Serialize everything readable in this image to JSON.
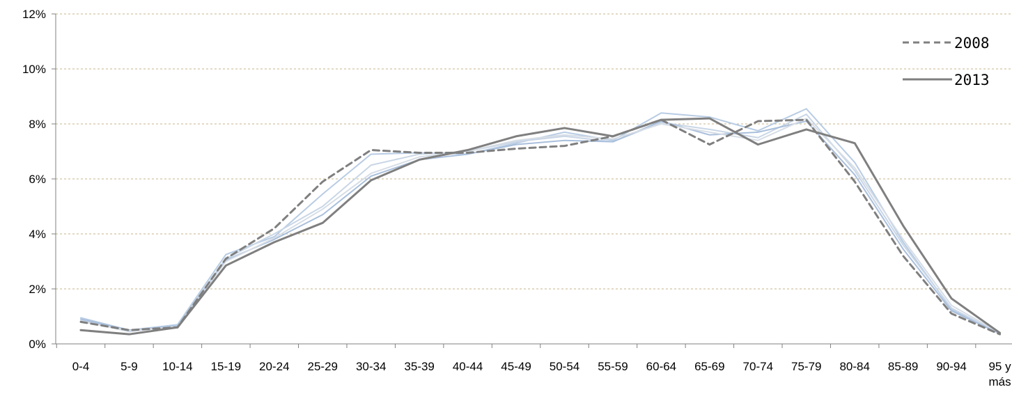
{
  "chart_data": {
    "type": "line",
    "title": "",
    "xlabel": "",
    "ylabel": "",
    "categories": [
      "0-4",
      "5-9",
      "10-14",
      "15-19",
      "20-24",
      "25-29",
      "30-34",
      "35-39",
      "40-44",
      "45-49",
      "50-54",
      "55-59",
      "60-64",
      "65-69",
      "70-74",
      "75-79",
      "80-84",
      "85-89",
      "90-94",
      "95 y más"
    ],
    "y_tick_labels": [
      "0%",
      "2%",
      "4%",
      "6%",
      "8%",
      "10%",
      "12%"
    ],
    "ylim": [
      0,
      12
    ],
    "grid": "horizontal dashed",
    "legend": {
      "position": "top-right",
      "entries": [
        {
          "label": "2008",
          "style": "dashed",
          "color": "#7f7f7f"
        },
        {
          "label": "2013",
          "style": "solid",
          "color": "#7f7f7f"
        }
      ]
    },
    "series": [
      {
        "name": "2008",
        "style": "dashed",
        "color": "#7f7f7f",
        "width": 3,
        "values": [
          0.8,
          0.5,
          0.6,
          3.1,
          4.2,
          5.9,
          7.05,
          6.95,
          6.95,
          7.1,
          7.2,
          7.55,
          8.15,
          7.25,
          8.1,
          8.15,
          5.9,
          3.2,
          1.1,
          0.35
        ]
      },
      {
        "style": "solid",
        "color": "#b8cce4",
        "width": 2,
        "values": [
          0.95,
          0.5,
          0.7,
          3.25,
          3.9,
          5.45,
          6.9,
          6.95,
          6.9,
          7.3,
          7.7,
          7.4,
          8.4,
          8.25,
          7.75,
          8.55,
          6.6,
          3.7,
          1.25,
          0.38
        ]
      },
      {
        "style": "solid",
        "color": "#c9d6e6",
        "width": 2,
        "values": [
          0.85,
          0.45,
          0.65,
          3.1,
          4.0,
          5.0,
          6.5,
          6.9,
          7.0,
          7.35,
          7.55,
          7.35,
          8.05,
          7.8,
          7.5,
          8.35,
          6.3,
          3.6,
          1.3,
          0.38
        ]
      },
      {
        "style": "solid",
        "color": "#a9bfdc",
        "width": 2,
        "values": [
          0.9,
          0.5,
          0.65,
          3.05,
          3.8,
          4.7,
          6.1,
          6.7,
          6.9,
          7.25,
          7.4,
          7.35,
          8.1,
          7.6,
          7.7,
          8.1,
          6.15,
          3.45,
          1.2,
          0.37
        ]
      },
      {
        "style": "solid",
        "color": "#d6dde6",
        "width": 2,
        "values": [
          0.82,
          0.48,
          0.62,
          3.0,
          3.85,
          4.9,
          6.2,
          6.8,
          7.0,
          7.4,
          7.6,
          7.45,
          8.0,
          7.7,
          7.4,
          8.2,
          6.4,
          3.8,
          1.4,
          0.4
        ]
      },
      {
        "name": "2013",
        "style": "solid",
        "color": "#7f7f7f",
        "width": 3,
        "values": [
          0.5,
          0.35,
          0.6,
          2.85,
          3.7,
          4.4,
          5.95,
          6.7,
          7.05,
          7.55,
          7.85,
          7.55,
          8.15,
          8.2,
          7.25,
          7.8,
          7.3,
          4.3,
          1.65,
          0.4
        ]
      }
    ]
  }
}
